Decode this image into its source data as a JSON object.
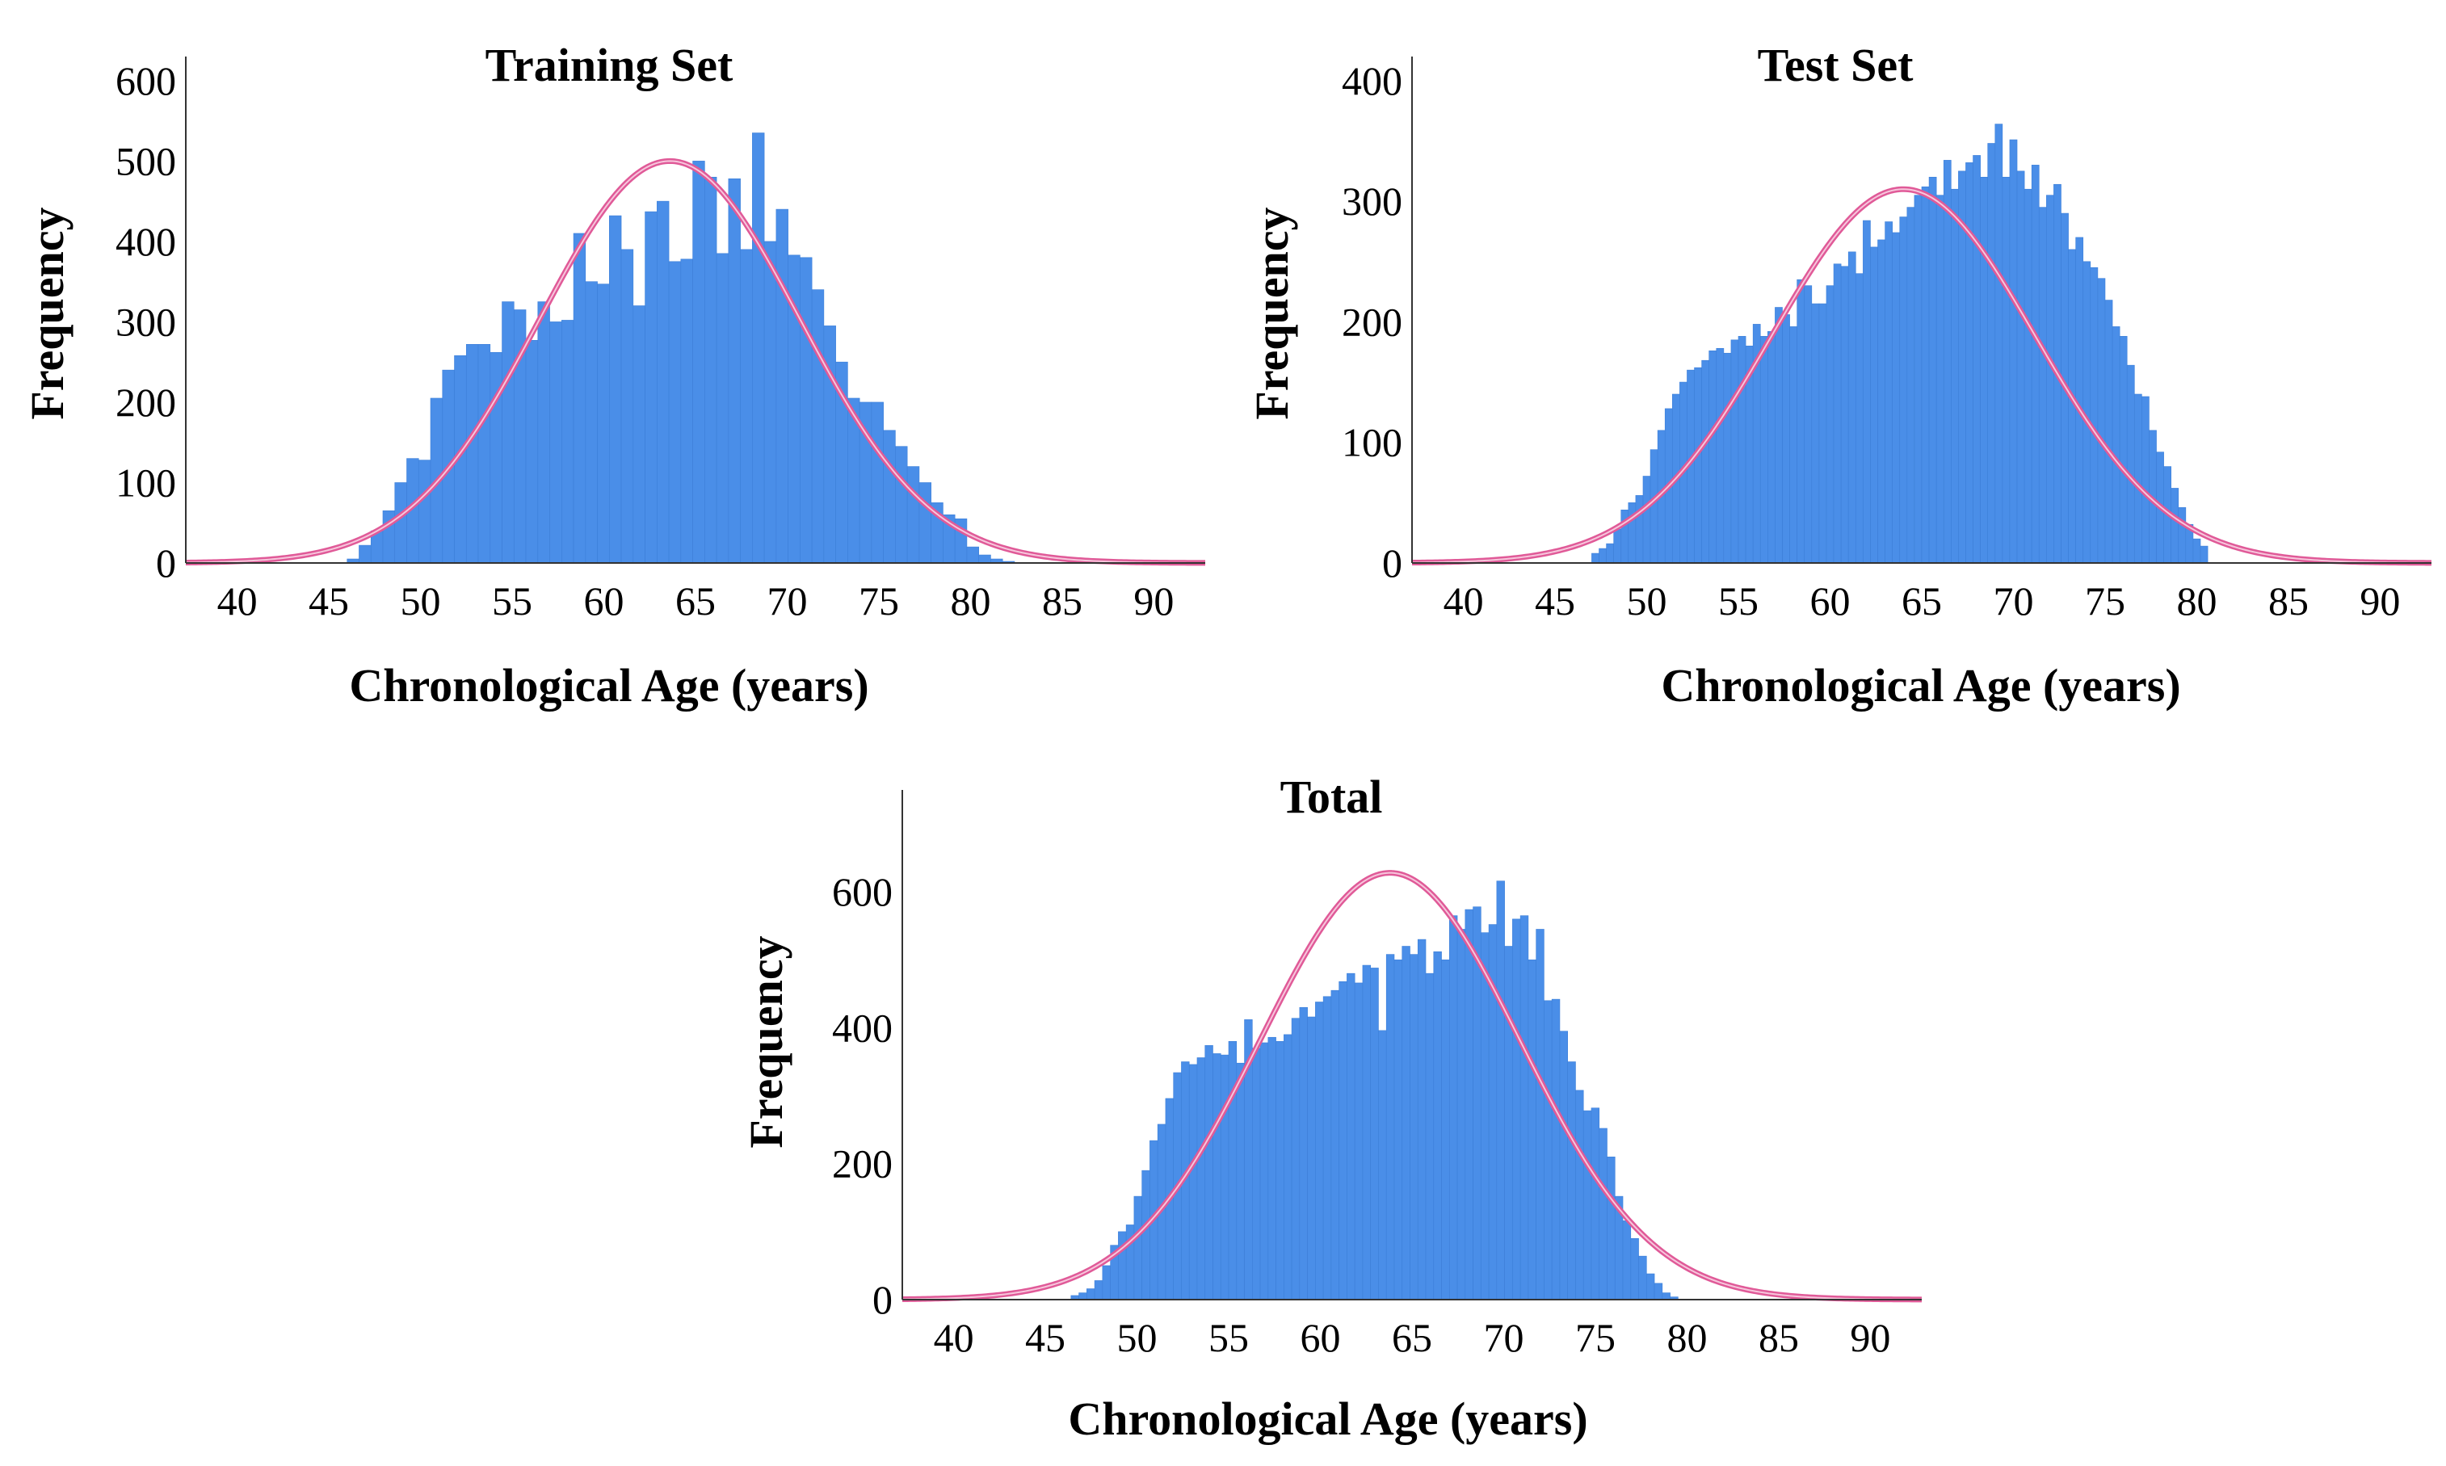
{
  "figure": {
    "colors": {
      "bar": "#4a8ee8",
      "curve": "#e05a98"
    },
    "x_ticks": [
      40,
      45,
      50,
      55,
      60,
      65,
      70,
      75,
      80,
      85,
      90
    ]
  },
  "chart_data": [
    {
      "type": "bar",
      "title": "Training Set",
      "xlabel": "Chronological Age (years)",
      "ylabel": "Frequency",
      "xlim": [
        37.2,
        92.8
      ],
      "ylim": [
        0,
        630
      ],
      "yticks": [
        0,
        100,
        200,
        300,
        400,
        500,
        600
      ],
      "bin_start": 46,
      "bin_width": 0.65,
      "values": [
        5,
        22,
        40,
        65,
        100,
        130,
        128,
        205,
        240,
        258,
        272,
        272,
        262,
        325,
        315,
        277,
        325,
        300,
        302,
        410,
        350,
        347,
        432,
        390,
        320,
        437,
        450,
        375,
        378,
        500,
        480,
        385,
        478,
        390,
        535,
        400,
        440,
        383,
        380,
        340,
        295,
        250,
        205,
        200,
        200,
        165,
        145,
        120,
        100,
        75,
        60,
        55,
        20,
        10,
        5,
        2
      ],
      "normal_fit": {
        "mean": 63.6,
        "sd": 7.1,
        "peak": 500
      }
    },
    {
      "type": "bar",
      "title": "Test Set",
      "xlabel": "Chronological Age (years)",
      "ylabel": "Frequency",
      "xlim": [
        37.2,
        92.8
      ],
      "ylim": [
        0,
        420
      ],
      "yticks": [
        0,
        100,
        200,
        300,
        400
      ],
      "bin_start": 47,
      "bin_width": 0.4,
      "values": [
        8,
        12,
        16,
        28,
        44,
        50,
        56,
        72,
        94,
        110,
        128,
        140,
        150,
        160,
        162,
        168,
        176,
        178,
        174,
        185,
        188,
        180,
        198,
        188,
        192,
        212,
        206,
        196,
        235,
        230,
        215,
        215,
        230,
        248,
        246,
        258,
        240,
        284,
        262,
        268,
        283,
        274,
        287,
        295,
        305,
        312,
        320,
        305,
        334,
        310,
        325,
        332,
        338,
        320,
        348,
        364,
        320,
        351,
        325,
        310,
        330,
        295,
        305,
        314,
        290,
        260,
        270,
        250,
        245,
        236,
        218,
        196,
        188,
        164,
        140,
        138,
        110,
        92,
        80,
        62,
        46,
        32,
        20,
        14
      ],
      "normal_fit": {
        "mean": 64.0,
        "sd": 7.2,
        "peak": 310
      }
    },
    {
      "type": "bar",
      "title": "Total",
      "xlabel": "Chronological Age (years)",
      "ylabel": "Frequency",
      "xlim": [
        37.2,
        92.8
      ],
      "ylim": [
        0,
        750
      ],
      "yticks": [
        0,
        200,
        400,
        600
      ],
      "bin_start": 46.4,
      "bin_width": 0.43,
      "values": [
        6,
        10,
        16,
        28,
        50,
        80,
        100,
        110,
        152,
        190,
        234,
        258,
        296,
        334,
        350,
        346,
        356,
        374,
        362,
        360,
        380,
        348,
        412,
        370,
        378,
        386,
        380,
        390,
        414,
        430,
        416,
        438,
        446,
        455,
        468,
        480,
        466,
        492,
        488,
        396,
        508,
        500,
        520,
        508,
        530,
        480,
        512,
        500,
        565,
        545,
        574,
        578,
        540,
        552,
        616,
        520,
        560,
        565,
        500,
        545,
        440,
        442,
        395,
        350,
        308,
        278,
        282,
        252,
        210,
        152,
        116,
        90,
        64,
        38,
        24,
        10,
        4
      ],
      "normal_fit": {
        "mean": 63.8,
        "sd": 7.1,
        "peak": 628
      }
    }
  ]
}
